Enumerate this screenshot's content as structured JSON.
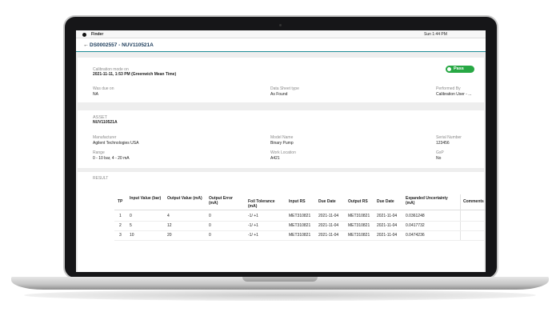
{
  "menu_bar": {
    "app": "Finder",
    "clock": "Sun 1:44 PM"
  },
  "header": {
    "title": "DS0002557 - NUV110521A"
  },
  "calibration": {
    "status": "Pass",
    "mode": {
      "label": "Calibration mode on",
      "value": "2021-11-11, 1:53 PM (Greenwich Mean Time)"
    },
    "fields": [
      {
        "label": "Was due on",
        "value": "NA"
      },
      {
        "label": "Data Sheet type",
        "value": "As Found"
      },
      {
        "label": "Performed By",
        "value": "Calibration User - ..."
      }
    ]
  },
  "asset": {
    "heading": "ASSET",
    "id": "NUV110521A",
    "fields": [
      {
        "label": "Manufacturer",
        "value": "Agilent Technologies USA"
      },
      {
        "label": "Model Name",
        "value": "Binary Pump"
      },
      {
        "label": "Serial Number",
        "value": "123456"
      },
      {
        "label": "Range",
        "value": "0 - 10 bar, 4 - 20 mA"
      },
      {
        "label": "Work Location",
        "value": "A421"
      },
      {
        "label": "GxP",
        "value": "No"
      }
    ]
  },
  "result": {
    "heading": "RESULT",
    "table": {
      "columns": [
        "TP",
        "Input Value (bar)",
        "Output Value (mA)",
        "Output Error (mA)",
        "Foil Tolerance (mA)",
        "Input RS",
        "Due Date",
        "Output RS",
        "Due Date",
        "Expanded Uncertainty (mA)",
        "Comments"
      ],
      "rows": [
        [
          1,
          0,
          4,
          0,
          "-1/ +1",
          "MET310821",
          "2021-11-04",
          "MET310821",
          "2021-11-04",
          0.0361248
        ],
        [
          2,
          5,
          12,
          0,
          "-1/ +1",
          "MET310821",
          "2021-11-04",
          "MET310821",
          "2021-11-04",
          0.0417732
        ],
        [
          3,
          10,
          20,
          0,
          "-1/ +1",
          "MET310821",
          "2021-11-04",
          "MET310821",
          "2021-11-04",
          0.0474236
        ]
      ]
    }
  }
}
